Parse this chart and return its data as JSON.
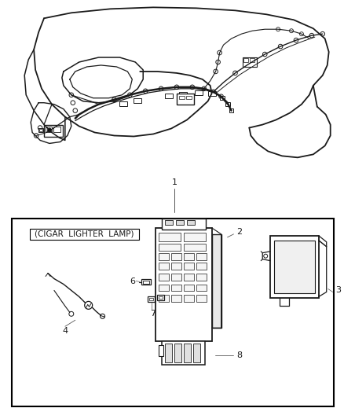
{
  "background_color": "#ffffff",
  "fig_width": 4.38,
  "fig_height": 5.33,
  "dpi": 100,
  "label_1": "1",
  "label_2": "2",
  "label_3": "3",
  "label_4": "4",
  "label_6": "6",
  "label_7": "7",
  "label_8": "8",
  "cigar_label": "(CIGAR  LIGHTER  LAMP)",
  "line_color": "#1a1a1a",
  "lw_main": 1.0,
  "lw_thin": 0.6,
  "lw_thick": 1.4
}
